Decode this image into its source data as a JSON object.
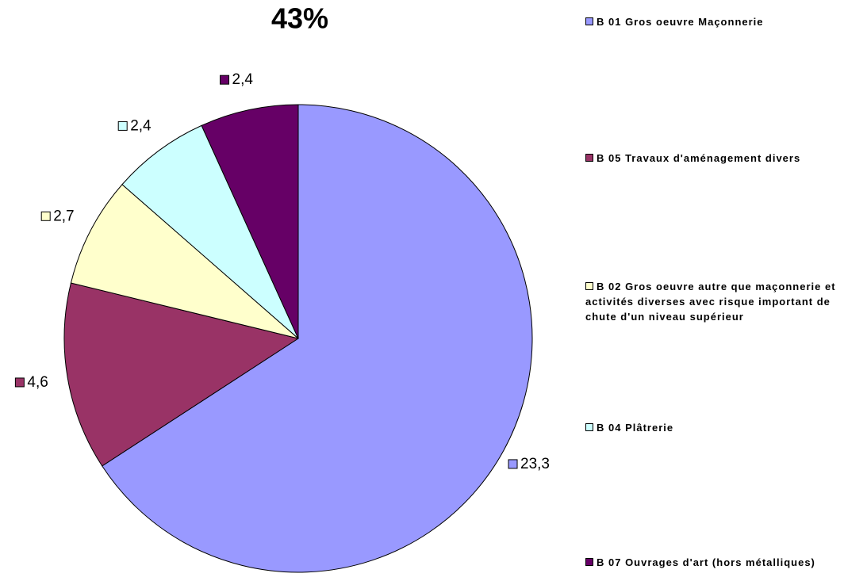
{
  "chart_data": {
    "type": "pie",
    "title": "43%",
    "legend": "right",
    "series": [
      {
        "name": "B 01 Gros oeuvre Maçonnerie",
        "color": "#9999ff",
        "values": [
          23.3
        ],
        "value_labels": [
          "23,3"
        ]
      },
      {
        "name": "B 05 Travaux d'aménagement divers",
        "color": "#993366",
        "values": [
          4.6
        ],
        "value_labels": [
          "4,6"
        ]
      },
      {
        "name": "B 02 Gros oeuvre autre que maçonnerie et activités diverses avec risque important de chute d'un niveau supérieur",
        "color": "#ffffcc",
        "values": [
          2.7
        ],
        "value_labels": [
          "2,7"
        ]
      },
      {
        "name": "B 04 Plâtrerie",
        "color": "#ccffff",
        "values": [
          2.4
        ],
        "value_labels": [
          "2,4"
        ]
      },
      {
        "name": "B 07 Ouvrages d'art (hors métalliques)",
        "color": "#660066",
        "values": [
          2.4
        ],
        "value_labels": [
          "2,4"
        ]
      }
    ]
  }
}
